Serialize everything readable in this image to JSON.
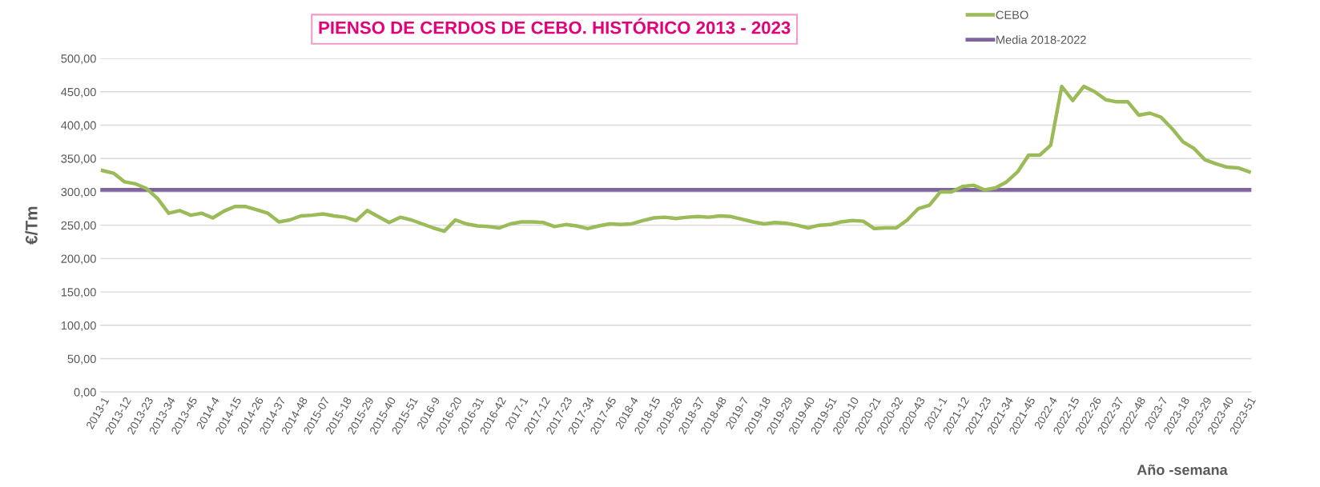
{
  "chart_data": {
    "type": "line",
    "title": "PIENSO DE CERDOS DE CEBO. HISTÓRICO 2013 - 2023",
    "ylabel": "€/Tm",
    "xlabel": "Año -semana",
    "categories": [
      "2013-1",
      null,
      "2013-12",
      null,
      "2013-23",
      null,
      "2013-34",
      null,
      "2013-45",
      null,
      "2014-4",
      null,
      "2014-15",
      null,
      "2014-26",
      null,
      "2014-37",
      null,
      "2014-48",
      null,
      "2015-07",
      null,
      "2015-18",
      null,
      "2015-29",
      null,
      "2015-40",
      null,
      "2015-51",
      null,
      "2016-9",
      null,
      "2016-20",
      null,
      "2016-31",
      null,
      "2016-42",
      null,
      "2017-1",
      null,
      "2017-12",
      null,
      "2017-23",
      null,
      "2017-34",
      null,
      "2017-45",
      null,
      "2018-4",
      null,
      "2018-15",
      null,
      "2018-26",
      null,
      "2018-37",
      null,
      "2018-48",
      null,
      "2019-7",
      null,
      "2019-18",
      null,
      "2019-29",
      null,
      "2019-40",
      null,
      "2019-51",
      null,
      "2020-10",
      null,
      "2020-21",
      null,
      "2020-32",
      null,
      "2020-43",
      null,
      "2021-1",
      null,
      "2021-12",
      null,
      "2021-23",
      null,
      "2021-34",
      null,
      "2021-45",
      null,
      "2022-4",
      null,
      "2022-15",
      null,
      "2022-26",
      null,
      "2022-37",
      null,
      "2022-48",
      null,
      "2023-7",
      null,
      "2023-18",
      null,
      "2023-29",
      null,
      "2023-40",
      null,
      "2023-51"
    ],
    "series": [
      {
        "name": "CEBO",
        "color": "#9bbb59",
        "values": [
          332,
          328,
          315,
          312,
          305,
          290,
          268,
          272,
          265,
          268,
          261,
          271,
          278,
          278,
          273,
          268,
          255,
          258,
          264,
          265,
          267,
          264,
          262,
          257,
          272,
          263,
          254,
          262,
          258,
          252,
          246,
          241,
          258,
          252,
          249,
          248,
          246,
          252,
          255,
          255,
          254,
          248,
          251,
          249,
          245,
          249,
          252,
          251,
          252,
          257,
          261,
          262,
          260,
          262,
          263,
          262,
          264,
          263,
          259,
          255,
          252,
          254,
          253,
          250,
          246,
          250,
          251,
          255,
          257,
          256,
          245,
          246,
          246,
          258,
          275,
          280,
          300,
          300,
          308,
          310,
          303,
          306,
          315,
          330,
          355,
          355,
          370,
          458,
          437,
          458,
          450,
          438,
          435,
          435,
          415,
          418,
          412,
          395,
          375,
          365,
          348,
          342,
          337,
          336,
          330
        ]
      }
    ],
    "ref_lines": [
      {
        "axis": "y",
        "value": 303,
        "label": "Media 2018-2022",
        "color": "#8064a2"
      }
    ],
    "ylim": [
      0,
      500
    ],
    "yticks": [
      {
        "value": 0,
        "label": "0,00"
      },
      {
        "value": 50,
        "label": "50,00"
      },
      {
        "value": 100,
        "label": "100,00"
      },
      {
        "value": 150,
        "label": "150,00"
      },
      {
        "value": 200,
        "label": "200,00"
      },
      {
        "value": 250,
        "label": "250,00"
      },
      {
        "value": 300,
        "label": "300,00"
      },
      {
        "value": 350,
        "label": "350,00"
      },
      {
        "value": 400,
        "label": "400,00"
      },
      {
        "value": 450,
        "label": "450,00"
      },
      {
        "value": 500,
        "label": "500,00"
      }
    ],
    "grid": "y",
    "legend": "top right",
    "marker": "none",
    "line_style": "solid"
  }
}
